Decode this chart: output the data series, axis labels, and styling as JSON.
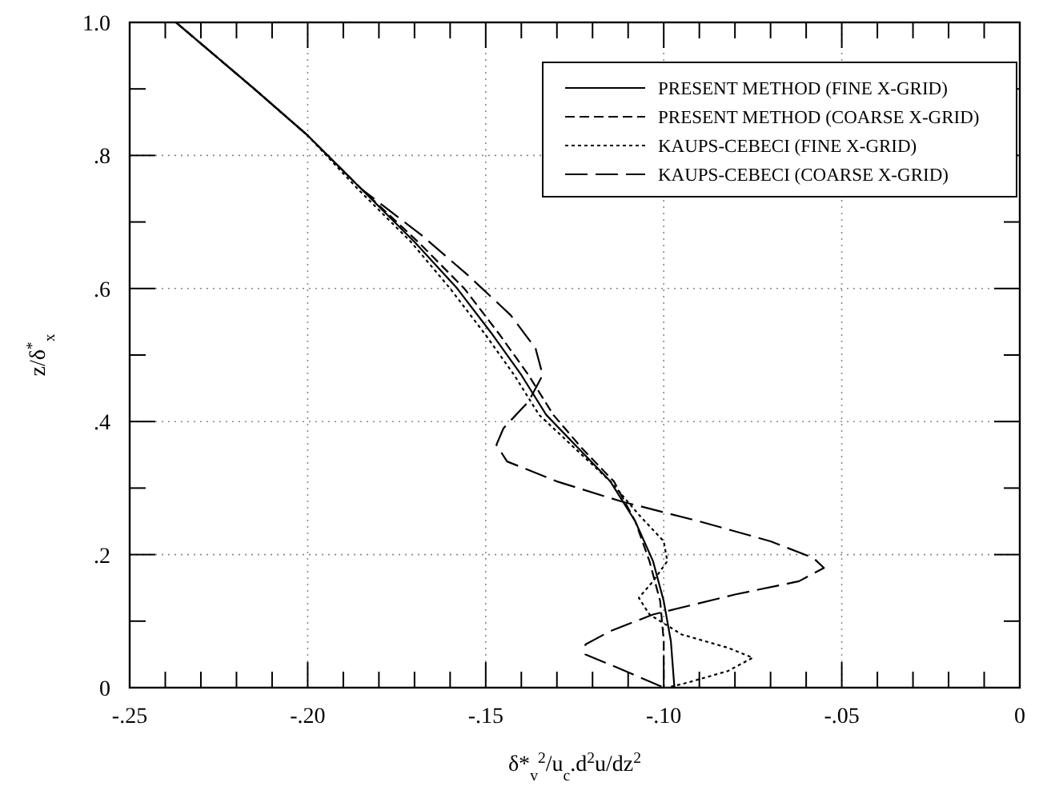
{
  "chart_data": {
    "type": "line",
    "xlabel": "δ*$_{v}$$^{2}$/u$_{c}$.d$^{2}$u/dz$^{2}$",
    "ylabel": "z/δ$^{*}$$_{x}$",
    "xlim": [
      -0.25,
      0
    ],
    "ylim": [
      0,
      1
    ],
    "xticks": [
      {
        "value": -0.25,
        "label": "-.25"
      },
      {
        "value": -0.24,
        "label": null
      },
      {
        "value": -0.23,
        "label": null
      },
      {
        "value": -0.22,
        "label": null
      },
      {
        "value": -0.21,
        "label": null
      },
      {
        "value": -0.2,
        "label": "-.20"
      },
      {
        "value": -0.19,
        "label": null
      },
      {
        "value": -0.18,
        "label": null
      },
      {
        "value": -0.17,
        "label": null
      },
      {
        "value": -0.16,
        "label": null
      },
      {
        "value": -0.15,
        "label": "-.15"
      },
      {
        "value": -0.14,
        "label": null
      },
      {
        "value": -0.13,
        "label": null
      },
      {
        "value": -0.12,
        "label": null
      },
      {
        "value": -0.11,
        "label": null
      },
      {
        "value": -0.1,
        "label": "-.10"
      },
      {
        "value": -0.09,
        "label": null
      },
      {
        "value": -0.08,
        "label": null
      },
      {
        "value": -0.07,
        "label": null
      },
      {
        "value": -0.06,
        "label": null
      },
      {
        "value": -0.05,
        "label": "-.05"
      },
      {
        "value": -0.04,
        "label": null
      },
      {
        "value": -0.03,
        "label": null
      },
      {
        "value": -0.02,
        "label": null
      },
      {
        "value": -0.01,
        "label": null
      },
      0
    ],
    "yticks": [
      0,
      {
        "value": 0.1,
        "label": null
      },
      {
        "value": 0.2,
        "label": ".2"
      },
      {
        "value": 0.3,
        "label": null
      },
      {
        "value": 0.4,
        "label": ".4"
      },
      {
        "value": 0.5,
        "label": null
      },
      {
        "value": 0.6,
        "label": ".6"
      },
      {
        "value": 0.7,
        "label": null
      },
      {
        "value": 0.8,
        "label": ".8"
      },
      {
        "value": 0.9,
        "label": null
      },
      {
        "value": 1.0,
        "label": "1.0"
      }
    ],
    "grid": true,
    "legend": "top right",
    "series": [
      {
        "name": "PRESENT METHOD (FINE X-GRID)",
        "color": "#000000",
        "line_style": "solid",
        "x": [
          -0.237,
          -0.215,
          -0.2,
          -0.185,
          -0.17,
          -0.158,
          -0.148,
          -0.14,
          -0.133,
          -0.124,
          -0.115,
          -0.108,
          -0.103,
          -0.1,
          -0.098,
          -0.097
        ],
        "values": [
          1.0,
          0.9,
          0.83,
          0.75,
          0.67,
          0.6,
          0.53,
          0.47,
          0.41,
          0.36,
          0.31,
          0.25,
          0.19,
          0.13,
          0.07,
          0.0
        ]
      },
      {
        "name": "PRESENT METHOD (COARSE X-GRID)",
        "color": "#000000",
        "line_style": "dashed",
        "x": [
          -0.237,
          -0.215,
          -0.2,
          -0.185,
          -0.169,
          -0.156,
          -0.146,
          -0.138,
          -0.131,
          -0.123,
          -0.114,
          -0.108,
          -0.104,
          -0.101,
          -0.1,
          -0.1
        ],
        "values": [
          1.0,
          0.9,
          0.83,
          0.75,
          0.67,
          0.6,
          0.53,
          0.47,
          0.41,
          0.36,
          0.31,
          0.25,
          0.19,
          0.13,
          0.07,
          0.0
        ]
      },
      {
        "name": "KAUPS-CEBECI (FINE X-GRID)",
        "color": "#000000",
        "line_style": "dotted",
        "x": [
          -0.237,
          -0.215,
          -0.2,
          -0.186,
          -0.171,
          -0.16,
          -0.15,
          -0.142,
          -0.135,
          -0.125,
          -0.115,
          -0.107,
          -0.1,
          -0.099,
          -0.103,
          -0.107,
          -0.104,
          -0.095,
          -0.082,
          -0.075,
          -0.082,
          -0.093,
          -0.099
        ],
        "values": [
          1.0,
          0.9,
          0.83,
          0.75,
          0.67,
          0.6,
          0.53,
          0.47,
          0.41,
          0.36,
          0.31,
          0.26,
          0.22,
          0.19,
          0.16,
          0.135,
          0.11,
          0.08,
          0.06,
          0.045,
          0.025,
          0.008,
          0.0
        ]
      },
      {
        "name": "KAUPS-CEBECI (COARSE X-GRID)",
        "color": "#000000",
        "line_style": "dashed",
        "x": [
          -0.237,
          -0.215,
          -0.2,
          -0.185,
          -0.168,
          -0.155,
          -0.143,
          -0.136,
          -0.134,
          -0.138,
          -0.145,
          -0.147,
          -0.144,
          -0.13,
          -0.112,
          -0.09,
          -0.07,
          -0.058,
          -0.055,
          -0.062,
          -0.08,
          -0.103,
          -0.115,
          -0.122,
          -0.122,
          -0.113,
          -0.1
        ],
        "values": [
          1.0,
          0.9,
          0.83,
          0.75,
          0.68,
          0.62,
          0.56,
          0.51,
          0.47,
          0.43,
          0.39,
          0.365,
          0.34,
          0.31,
          0.28,
          0.25,
          0.22,
          0.195,
          0.18,
          0.16,
          0.14,
          0.11,
          0.085,
          0.065,
          0.05,
          0.03,
          0.0
        ]
      }
    ]
  }
}
